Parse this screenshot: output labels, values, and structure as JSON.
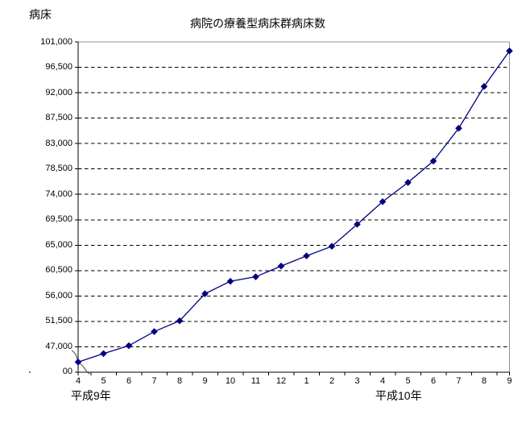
{
  "colors": {
    "series": "#000080",
    "grid": "#000000",
    "axis": "#000000",
    "top_right_border": "#909090",
    "background": "#ffffff",
    "text": "#000000"
  },
  "chart_data": {
    "type": "line",
    "title": "病院の療養型病床群病床数",
    "ylabel": "病床",
    "xlabel": "",
    "legend": "none",
    "grid": "horizontal-dashed",
    "axis_break_at_bottom": true,
    "categories": [
      "4",
      "5",
      "6",
      "7",
      "8",
      "9",
      "10",
      "11",
      "12",
      "1",
      "2",
      "3",
      "4",
      "5",
      "6",
      "7",
      "8",
      "9"
    ],
    "era_labels": [
      "平成9年",
      "平成10年"
    ],
    "series": [
      {
        "name": "病院の療養型病床群病床数",
        "color": "#000080",
        "marker": "diamond",
        "values": [
          44300,
          45800,
          47200,
          49700,
          51600,
          56400,
          58600,
          59400,
          61300,
          63100,
          64800,
          68700,
          72700,
          76100,
          79900,
          85700,
          93100,
          99400
        ]
      }
    ],
    "ylim": [
      42500,
      101000
    ],
    "y_tick_step": 4500,
    "y_tick_labels": [
      "101,000",
      "96,500",
      "92,000",
      "87,500",
      "83,000",
      "78,500",
      "74,000",
      "69,500",
      "65,000",
      "60,500",
      "56,000",
      "51,500",
      "47,000"
    ],
    "y_min_label_visible": "00"
  }
}
